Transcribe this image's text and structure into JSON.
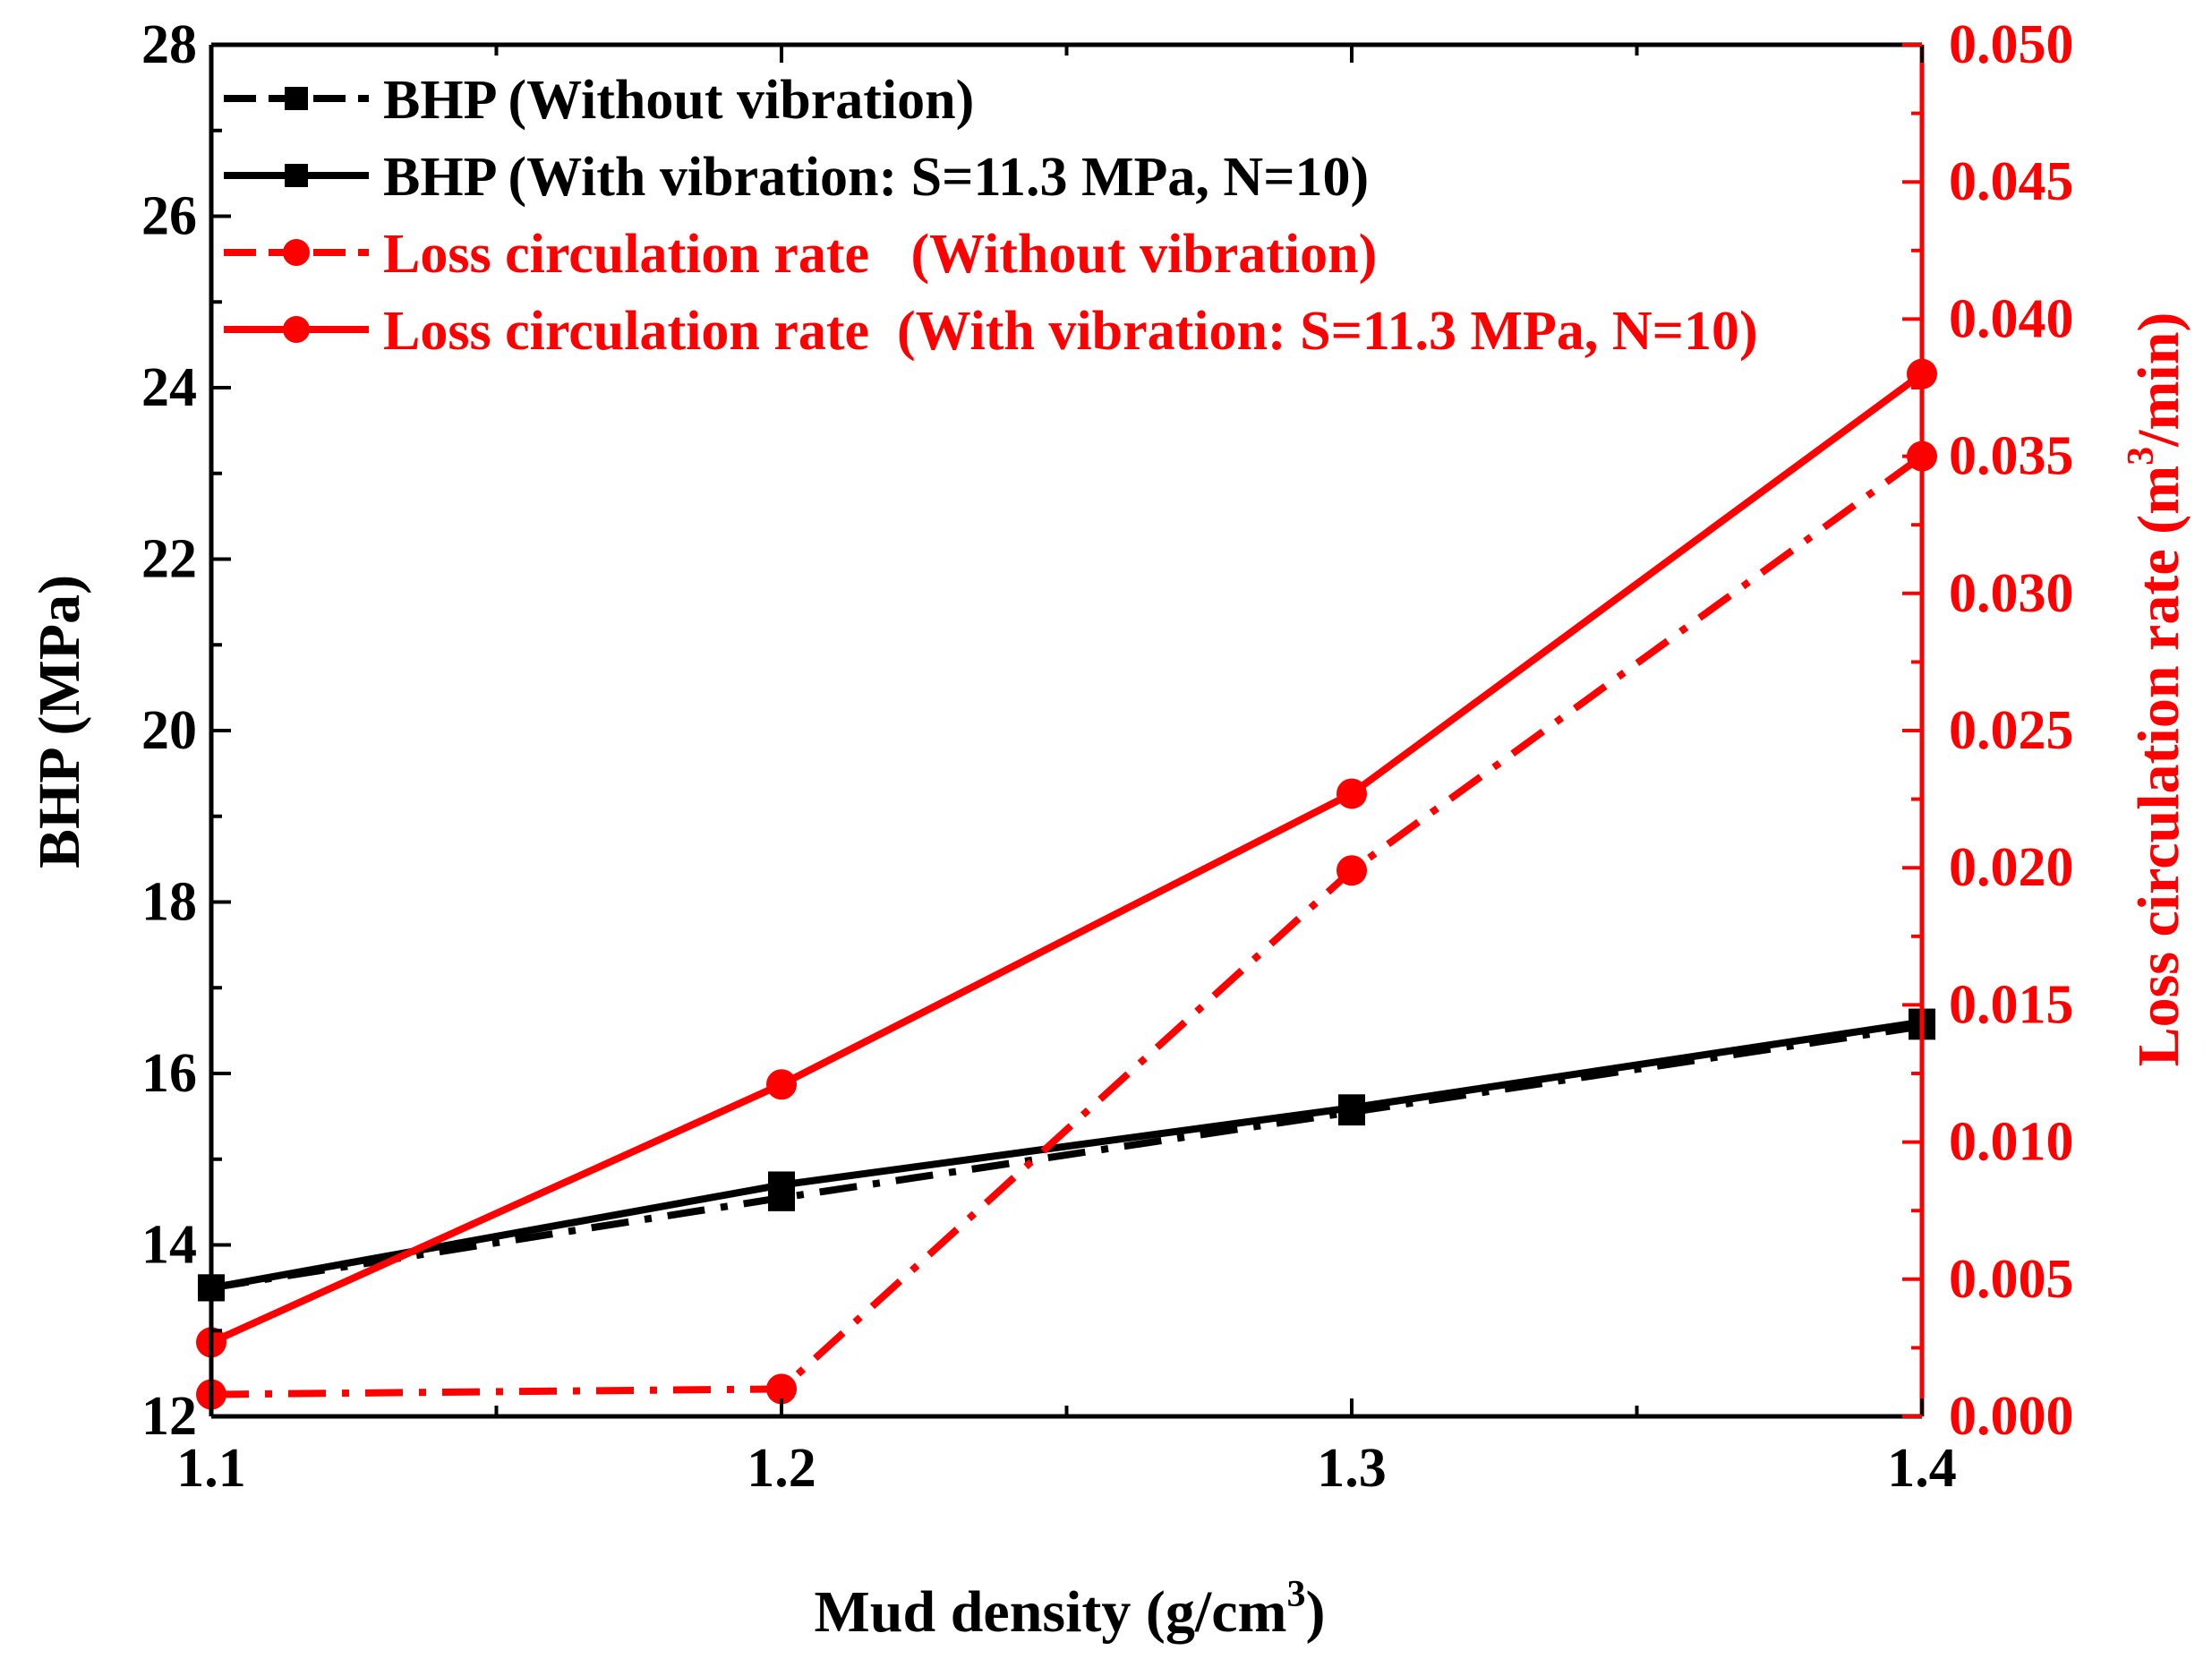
{
  "chart_data": {
    "type": "line",
    "x_values": [
      1.1,
      1.2,
      1.3,
      1.4
    ],
    "xlim": [
      1.1,
      1.4
    ],
    "x_ticks": [
      "1.1",
      "1.2",
      "1.3",
      "1.4"
    ],
    "xlabel": "Mud density (g/cm",
    "xlabel_sup": "3",
    "xlabel_tail": ")",
    "left_axis": {
      "label": "BHP (MPa)",
      "ylim": [
        12,
        28
      ],
      "ticks": [
        "12",
        "14",
        "16",
        "18",
        "20",
        "22",
        "24",
        "26",
        "28"
      ],
      "color": "#000000"
    },
    "right_axis": {
      "label": "Loss circulation rate (m",
      "label_sup": "3",
      "label_tail": "/min)",
      "ylim": [
        0.0,
        0.05
      ],
      "ticks": [
        "0.000",
        "0.005",
        "0.010",
        "0.015",
        "0.020",
        "0.025",
        "0.030",
        "0.035",
        "0.040",
        "0.045",
        "0.050"
      ],
      "color": "#ff0000"
    },
    "grid": false,
    "legend_position": "top-left",
    "series": [
      {
        "name": "BHP (Without vibration)",
        "axis": "left",
        "values": [
          13.5,
          14.55,
          15.55,
          16.55
        ],
        "color": "#000000",
        "line_style": "dash-dot",
        "marker": "square"
      },
      {
        "name": "BHP (With vibration: S=11.3 MPa, N=10)",
        "axis": "left",
        "values": [
          13.5,
          14.7,
          15.6,
          16.6
        ],
        "color": "#000000",
        "line_style": "solid",
        "marker": "square"
      },
      {
        "name": "Loss circulation rate   (Without vibration)",
        "axis": "right",
        "values": [
          0.0008,
          0.001,
          0.0199,
          0.035
        ],
        "color": "#ff0000",
        "line_style": "dash-dot",
        "marker": "circle"
      },
      {
        "name": "Loss circulation rate  (With vibration: S=11.3 MPa, N=10)",
        "axis": "right",
        "values": [
          0.0027,
          0.0121,
          0.0227,
          0.038
        ],
        "color": "#ff0000",
        "line_style": "solid",
        "marker": "circle"
      }
    ]
  }
}
